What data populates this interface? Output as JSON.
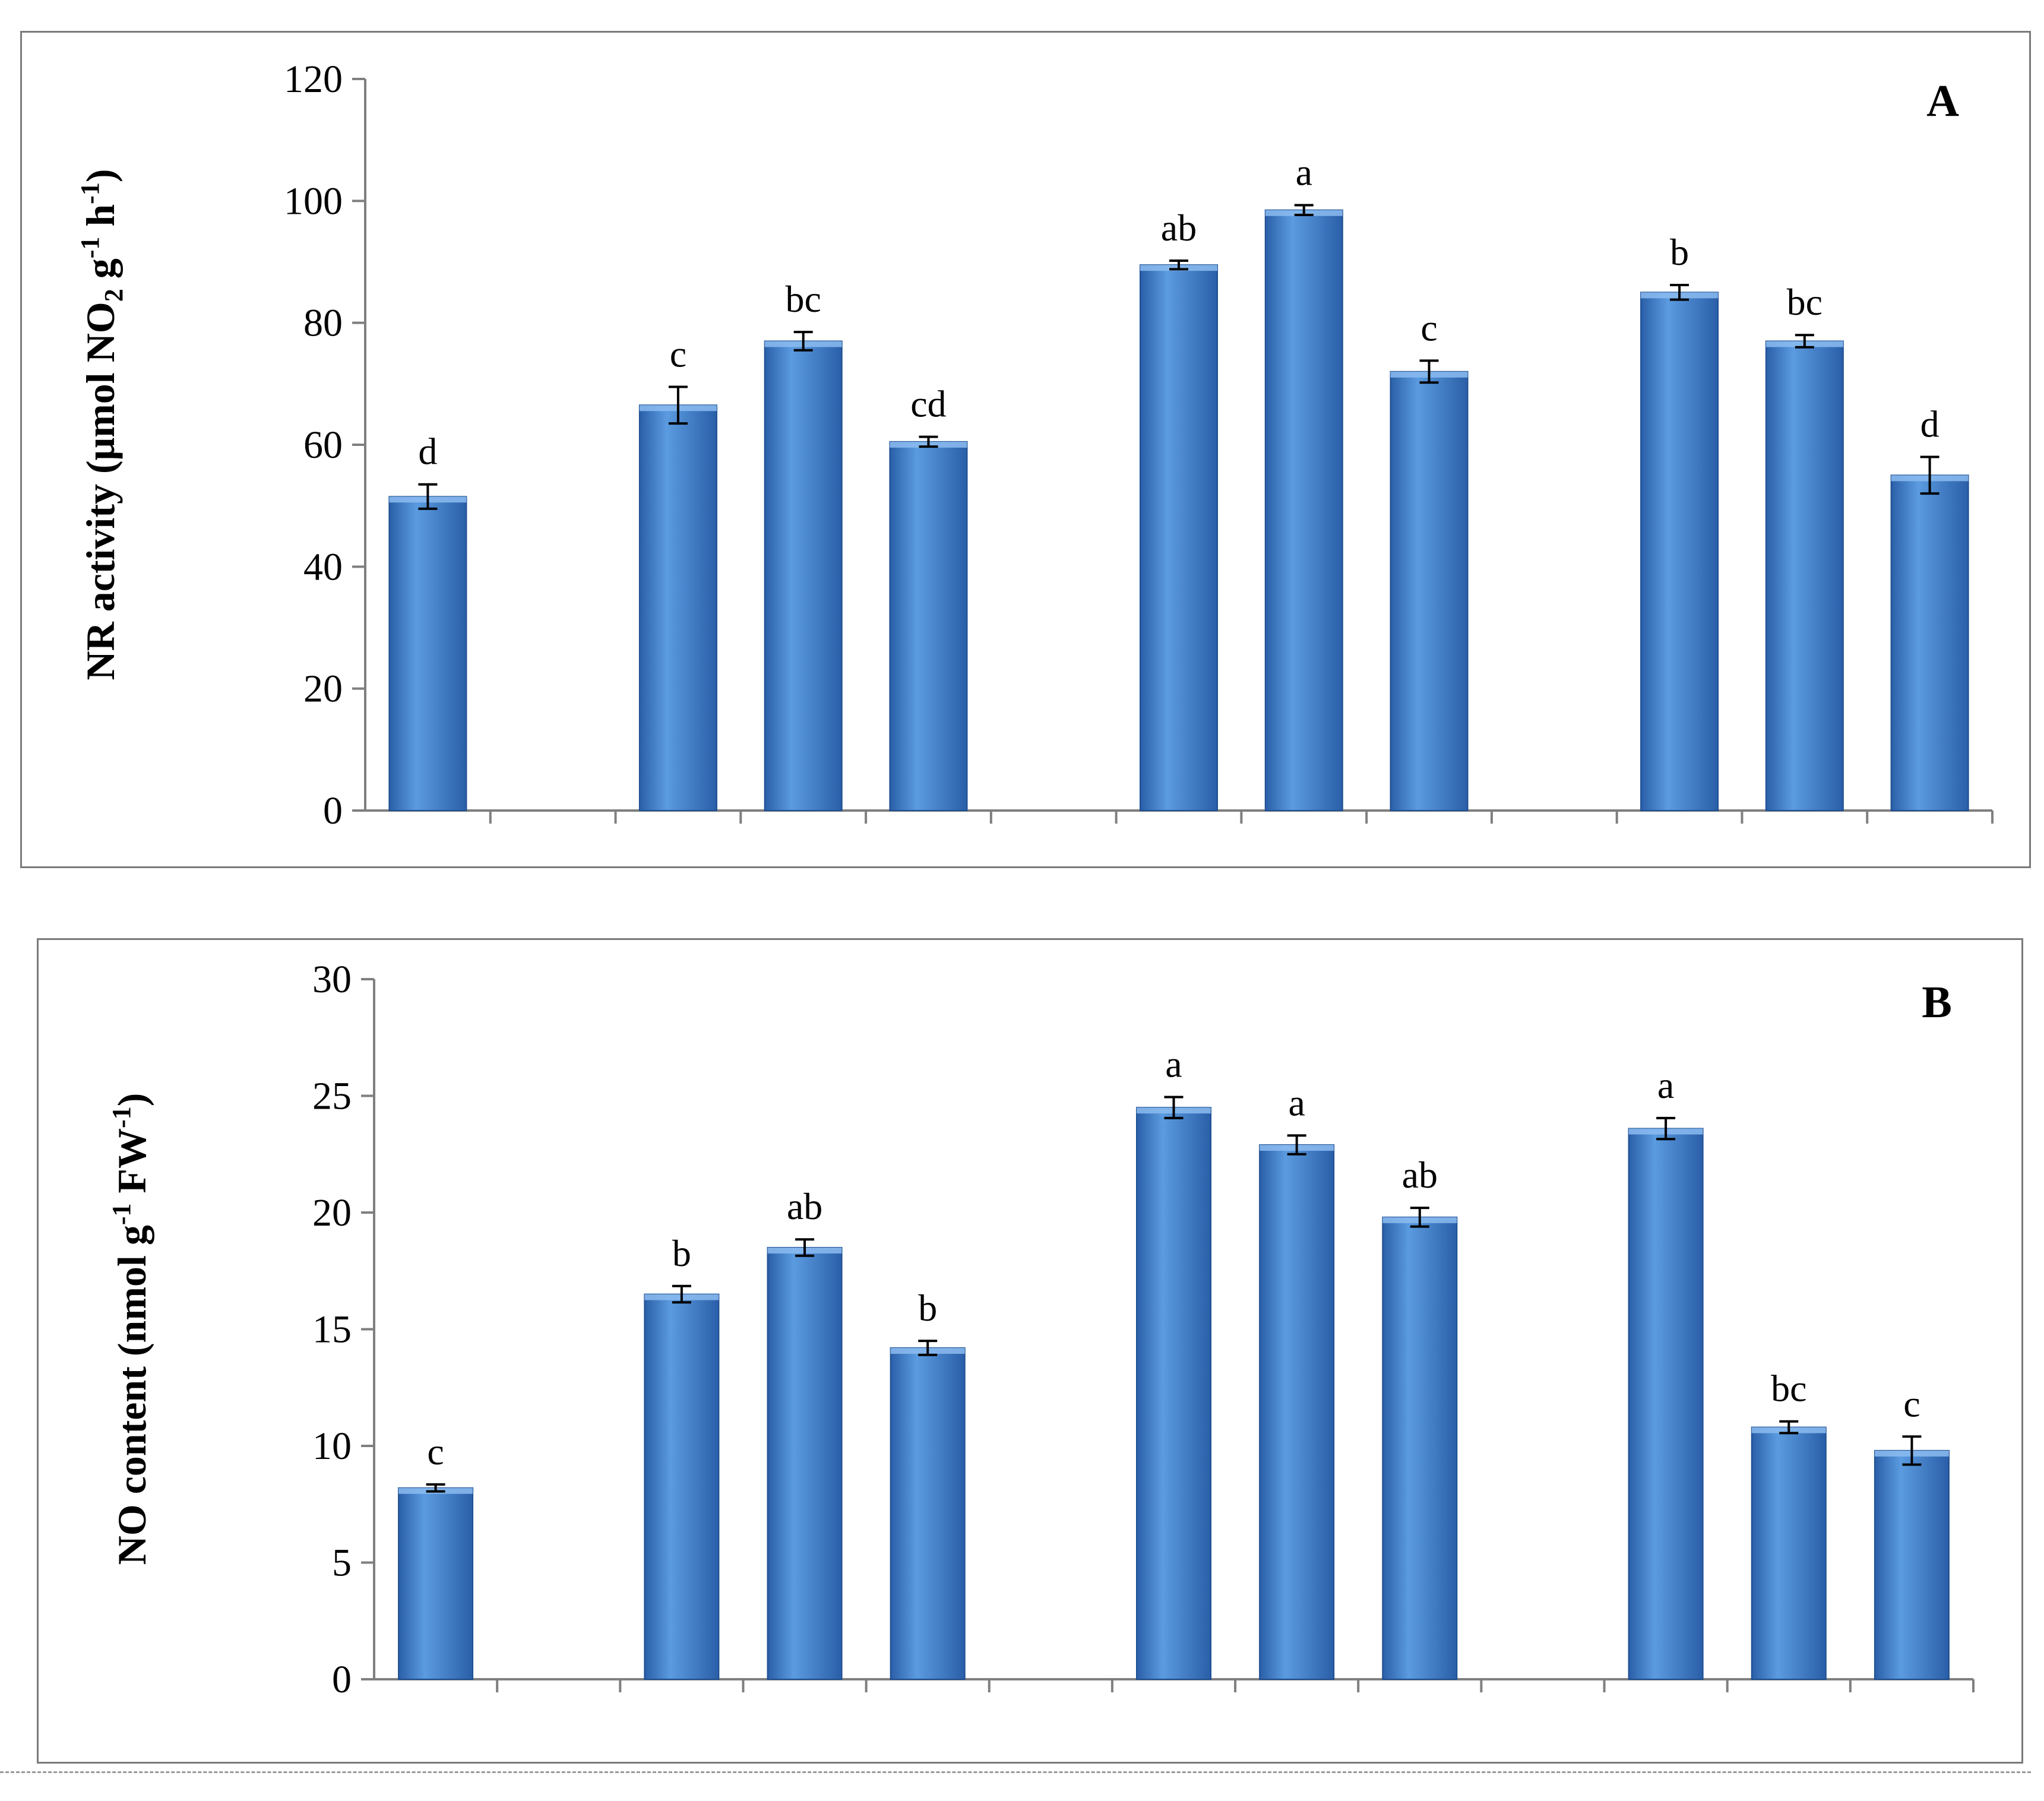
{
  "colors": {
    "bar_top": "#5b9be0",
    "bar_mid": "#3b78c8",
    "bar_bottom": "#2a5fa8",
    "axis": "#7f7f7f",
    "text": "#000000"
  },
  "chart_data": [
    {
      "type": "bar",
      "panel_label": "A",
      "ylabel": "NR activity (µmol NO2 g-1 h-1)",
      "ylabel_parts": {
        "main": "NR activity (μmol NO",
        "sub": "2",
        "mid": " g",
        "sup1": "-1",
        "mid2": " h",
        "sup2": "-1",
        "end": ")"
      },
      "ylim": [
        0,
        120
      ],
      "yticks": [
        0,
        20,
        40,
        60,
        80,
        100,
        120
      ],
      "ytick_labels": [
        "0",
        "20",
        "40",
        "60",
        "80",
        "100",
        "120"
      ],
      "slots": 13,
      "bars": [
        {
          "slot": 0,
          "value": 51.5,
          "error": 2.0,
          "letter": "d"
        },
        {
          "slot": 2,
          "value": 66.5,
          "error": 3.0,
          "letter": "c"
        },
        {
          "slot": 3,
          "value": 77.0,
          "error": 1.5,
          "letter": "bc"
        },
        {
          "slot": 4,
          "value": 60.5,
          "error": 0.8,
          "letter": "cd"
        },
        {
          "slot": 6,
          "value": 89.5,
          "error": 0.7,
          "letter": "ab"
        },
        {
          "slot": 7,
          "value": 98.5,
          "error": 0.8,
          "letter": "a"
        },
        {
          "slot": 8,
          "value": 72.0,
          "error": 1.8,
          "letter": "c"
        },
        {
          "slot": 10,
          "value": 85.0,
          "error": 1.2,
          "letter": "b"
        },
        {
          "slot": 11,
          "value": 77.0,
          "error": 1.0,
          "letter": "bc"
        },
        {
          "slot": 12,
          "value": 55.0,
          "error": 3.0,
          "letter": "d"
        }
      ]
    },
    {
      "type": "bar",
      "panel_label": "B",
      "ylabel": "NO content (nmol g-1 FW-1)",
      "ylabel_parts": {
        "main": "NO content (nmol g",
        "sup1": "-1",
        "mid": " FW",
        "sup2": "-1",
        "end": ")"
      },
      "ylim": [
        0,
        30
      ],
      "yticks": [
        0,
        5,
        10,
        15,
        20,
        25,
        30
      ],
      "ytick_labels": [
        "0",
        "5",
        "10",
        "15",
        "20",
        "25",
        "30"
      ],
      "slots": 13,
      "bars": [
        {
          "slot": 0,
          "value": 8.2,
          "error": 0.15,
          "letter": "c"
        },
        {
          "slot": 2,
          "value": 16.5,
          "error": 0.35,
          "letter": "b"
        },
        {
          "slot": 3,
          "value": 18.5,
          "error": 0.35,
          "letter": "ab"
        },
        {
          "slot": 4,
          "value": 14.2,
          "error": 0.3,
          "letter": "b"
        },
        {
          "slot": 6,
          "value": 24.5,
          "error": 0.45,
          "letter": "a"
        },
        {
          "slot": 7,
          "value": 22.9,
          "error": 0.4,
          "letter": "a"
        },
        {
          "slot": 8,
          "value": 19.8,
          "error": 0.4,
          "letter": "ab"
        },
        {
          "slot": 10,
          "value": 23.6,
          "error": 0.45,
          "letter": "a"
        },
        {
          "slot": 11,
          "value": 10.8,
          "error": 0.25,
          "letter": "bc"
        },
        {
          "slot": 12,
          "value": 9.8,
          "error": 0.6,
          "letter": "c"
        }
      ]
    }
  ]
}
